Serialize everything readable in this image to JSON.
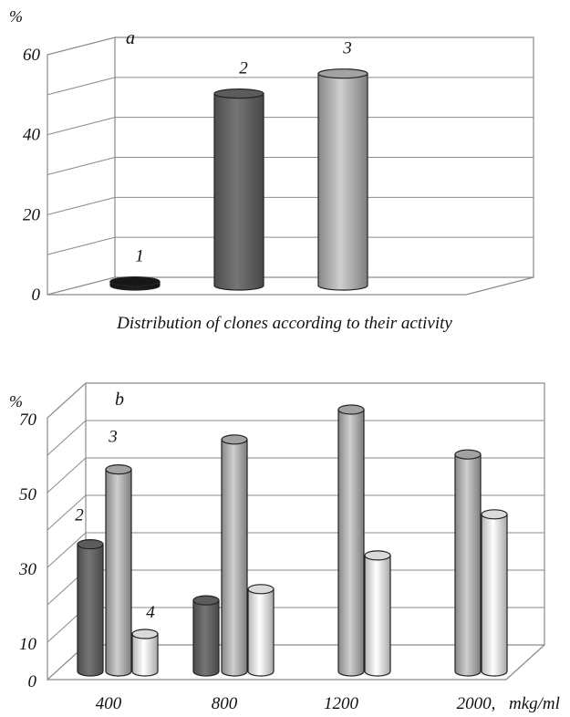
{
  "charts": [
    {
      "panel_label": "a",
      "unit": "%",
      "xlabel": "Distribution of clones according to their activity",
      "y_ticks": [
        "0",
        "20",
        "40",
        "60"
      ],
      "series_colors": {
        "1": "#1a1a1a",
        "2": "#666666",
        "3": "#b4b4b4"
      },
      "bar_labels": [
        "1",
        "2",
        "3"
      ]
    },
    {
      "panel_label": "b",
      "unit": "%",
      "xlabel": "mkg/ml",
      "y_ticks": [
        "0",
        "10",
        "30",
        "50",
        "70"
      ],
      "categories": [
        "400",
        "800",
        "1200",
        "2000,"
      ],
      "bar_labels": [
        "2",
        "3",
        "4"
      ],
      "series_colors": {
        "2": "#666666",
        "3": "#b4b4b4",
        "4": "#f2f2f2"
      }
    }
  ],
  "chart_data": [
    {
      "type": "bar",
      "title": "",
      "xlabel": "Distribution of clones according to their activity",
      "ylabel": "%",
      "ylim": [
        0,
        60
      ],
      "categories": [
        "1",
        "2",
        "3"
      ],
      "values": [
        1,
        48,
        53
      ],
      "grid": true
    },
    {
      "type": "bar",
      "title": "",
      "xlabel": "mkg/ml",
      "ylabel": "%",
      "ylim": [
        0,
        70
      ],
      "categories": [
        "400",
        "800",
        "1200",
        "2000"
      ],
      "series": [
        {
          "name": "2",
          "values": [
            34,
            19,
            0,
            0
          ]
        },
        {
          "name": "3",
          "values": [
            54,
            62,
            70,
            58
          ]
        },
        {
          "name": "4",
          "values": [
            10,
            22,
            31,
            42
          ]
        }
      ],
      "grid": true
    }
  ]
}
